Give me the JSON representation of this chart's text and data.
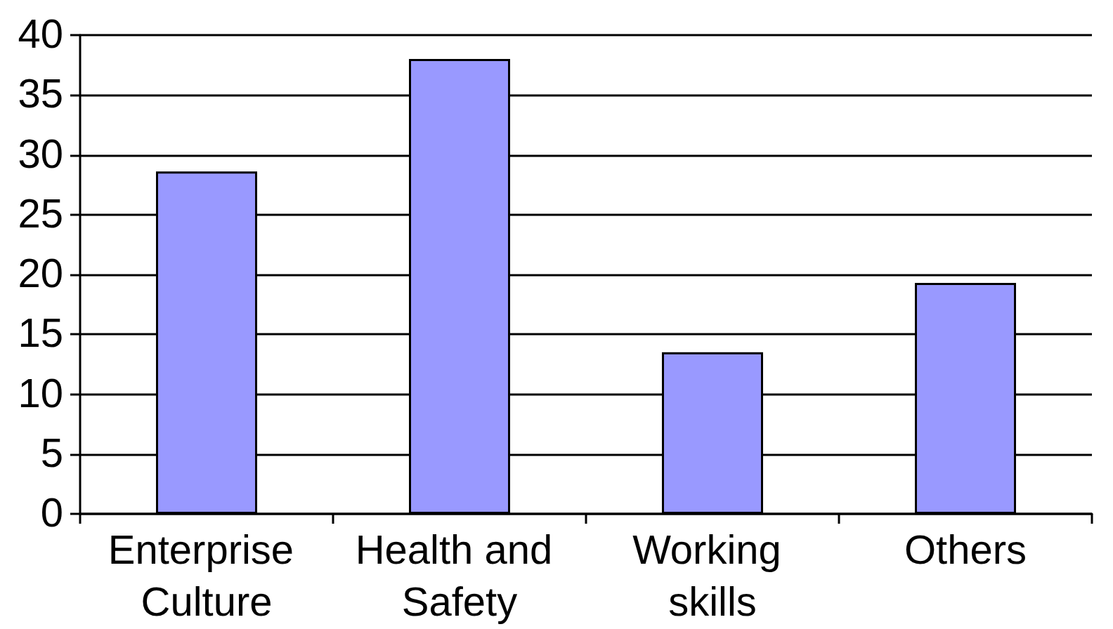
{
  "chart_data": {
    "type": "bar",
    "categories": [
      "Enterprise Culture",
      "Health and Safety",
      "Working skills",
      "Others"
    ],
    "values": [
      28.6,
      38,
      13.5,
      19.3
    ],
    "color": "#9999ff",
    "ylim": [
      0,
      40
    ],
    "yticks": [
      0,
      5,
      10,
      15,
      20,
      25,
      30,
      35,
      40
    ],
    "grid": "y"
  }
}
